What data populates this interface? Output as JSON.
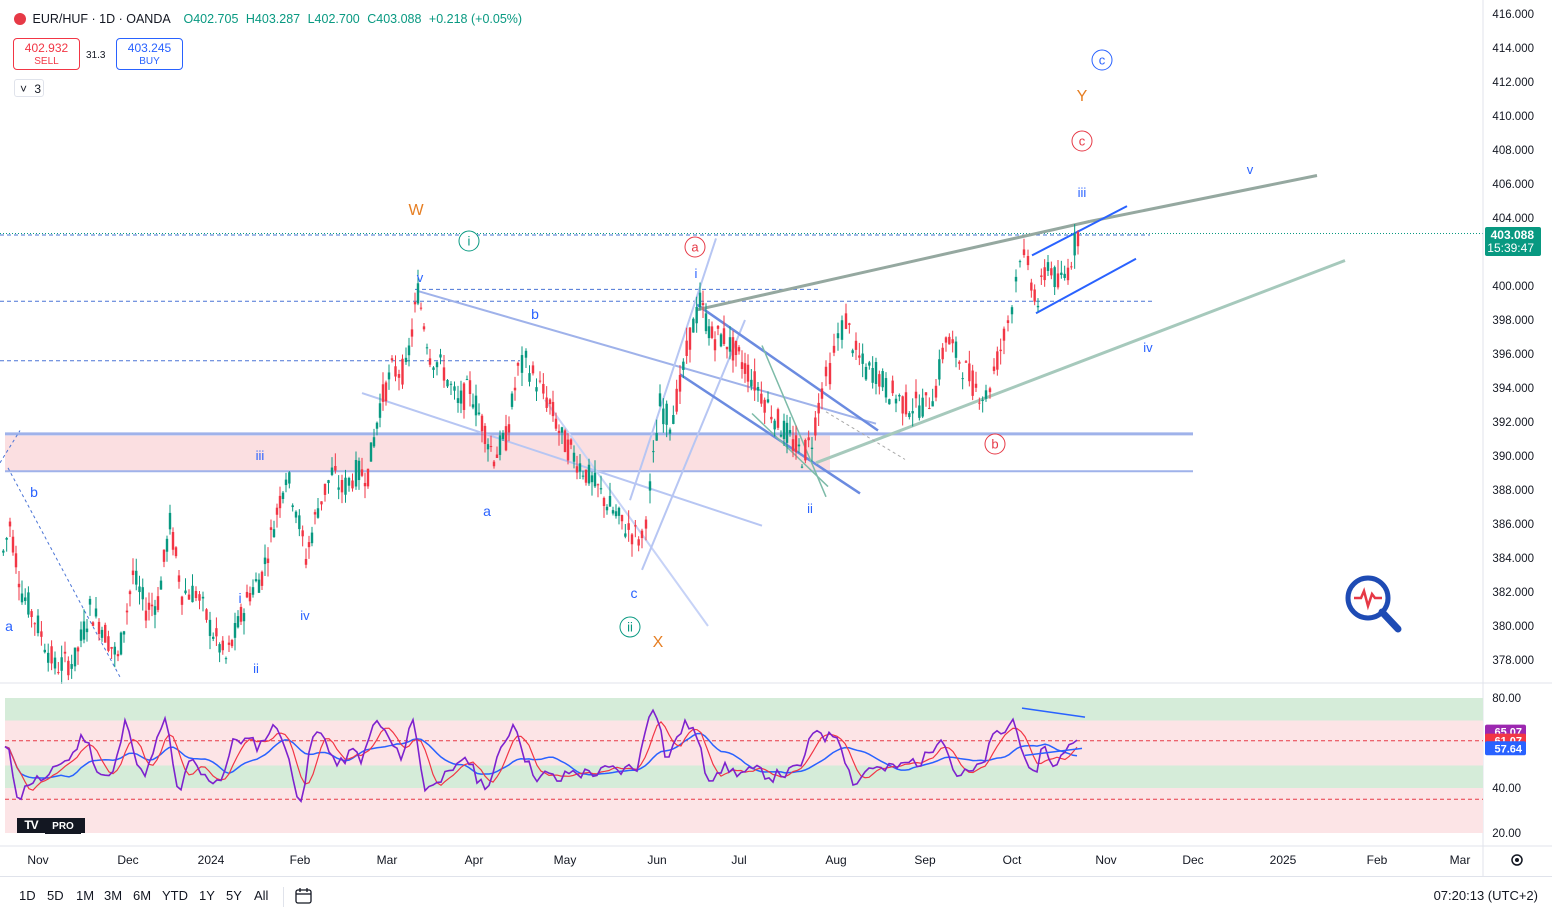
{
  "header": {
    "symbol": "EUR/HUF · 1D · OANDA",
    "open": "O402.705",
    "high": "H403.287",
    "low": "L402.700",
    "close": "C403.088",
    "change": "+0.218 (+0.05%)"
  },
  "trade": {
    "sell_price": "402.932",
    "sell_label": "SELL",
    "spread": "31.3",
    "buy_price": "403.245",
    "buy_label": "BUY",
    "collapse_count": "3"
  },
  "price_axis": [
    "416.000",
    "414.000",
    "412.000",
    "410.000",
    "408.000",
    "406.000",
    "404.000",
    "400.000",
    "398.000",
    "396.000",
    "394.000",
    "392.000",
    "390.000",
    "388.000",
    "386.000",
    "384.000",
    "382.000",
    "380.000",
    "378.000"
  ],
  "price_tag": {
    "price": "403.088",
    "countdown": "15:39:47"
  },
  "rsi_axis": [
    "80.00",
    "40.00",
    "20.00"
  ],
  "rsi_tags": [
    "65.07",
    "61.07",
    "57.64"
  ],
  "time_axis": [
    "Nov",
    "Dec",
    "2024",
    "Feb",
    "Mar",
    "Apr",
    "May",
    "Jun",
    "Jul",
    "Aug",
    "Sep",
    "Oct",
    "Nov",
    "Dec",
    "2025",
    "Feb",
    "Mar"
  ],
  "wave_labels": {
    "W": "W",
    "X": "X",
    "Y": "Y",
    "i_circ": "i",
    "ii_circ": "ii",
    "a_circ": "a",
    "b_circ": "b",
    "c_circ_red": "c",
    "c_circ_blue": "c",
    "v1": "v",
    "b1": "b",
    "a1": "a",
    "c1": "c",
    "iii1": "iii",
    "b0": "b",
    "a0": "a",
    "i1": "i",
    "ii1": "ii",
    "iv1": "iv",
    "i2": "i",
    "ii2": "ii",
    "iii2": "iii",
    "iv2": "iv",
    "v2": "v"
  },
  "ranges": [
    "1D",
    "5D",
    "1M",
    "3M",
    "6M",
    "YTD",
    "1Y",
    "5Y",
    "All"
  ],
  "clock": "07:20:13 (UTC+2)",
  "logo": {
    "tv": "TV",
    "pro": "PRO"
  },
  "colors": {
    "up": "#089981",
    "down": "#f23645",
    "rsi": "#7e22ce",
    "rsi_ma_red": "#f23645",
    "rsi_ma_blue": "#2962ff"
  },
  "chart_data": {
    "type": "candlestick",
    "symbol": "EUR/HUF",
    "interval": "1D",
    "ylim": [
      377,
      417
    ],
    "path": [
      [
        0,
        383.5
      ],
      [
        10,
        386
      ],
      [
        22,
        382
      ],
      [
        38,
        380
      ],
      [
        55,
        377.6
      ],
      [
        75,
        378
      ],
      [
        90,
        381
      ],
      [
        102,
        380
      ],
      [
        118,
        378
      ],
      [
        133,
        383
      ],
      [
        146,
        381
      ],
      [
        158,
        381.5
      ],
      [
        170,
        386
      ],
      [
        182,
        382
      ],
      [
        196,
        382
      ],
      [
        210,
        380
      ],
      [
        226,
        378
      ],
      [
        238,
        380
      ],
      [
        250,
        382
      ],
      [
        262,
        383
      ],
      [
        274,
        386
      ],
      [
        286,
        389
      ],
      [
        296,
        387
      ],
      [
        306,
        384
      ],
      [
        318,
        387
      ],
      [
        332,
        389
      ],
      [
        342,
        388
      ],
      [
        356,
        389
      ],
      [
        368,
        389
      ],
      [
        380,
        393
      ],
      [
        392,
        395
      ],
      [
        406,
        395
      ],
      [
        418,
        399.7
      ],
      [
        430,
        396
      ],
      [
        444,
        395
      ],
      [
        458,
        393
      ],
      [
        470,
        394
      ],
      [
        482,
        392
      ],
      [
        494,
        390
      ],
      [
        506,
        391
      ],
      [
        518,
        395
      ],
      [
        526,
        395.5
      ],
      [
        540,
        394
      ],
      [
        550,
        393
      ],
      [
        562,
        391
      ],
      [
        574,
        390
      ],
      [
        586,
        389
      ],
      [
        598,
        388
      ],
      [
        610,
        387
      ],
      [
        622,
        386
      ],
      [
        632,
        385.5
      ],
      [
        642,
        385
      ],
      [
        650,
        388
      ],
      [
        660,
        393
      ],
      [
        670,
        392
      ],
      [
        680,
        394
      ],
      [
        690,
        397
      ],
      [
        700,
        399
      ],
      [
        712,
        397
      ],
      [
        724,
        397
      ],
      [
        736,
        396
      ],
      [
        748,
        395
      ],
      [
        758,
        394
      ],
      [
        768,
        393
      ],
      [
        778,
        392
      ],
      [
        790,
        391
      ],
      [
        802,
        390
      ],
      [
        812,
        391
      ],
      [
        822,
        394
      ],
      [
        830,
        395
      ],
      [
        838,
        397
      ],
      [
        846,
        398
      ],
      [
        856,
        396
      ],
      [
        866,
        395
      ],
      [
        876,
        395
      ],
      [
        886,
        394
      ],
      [
        896,
        393.5
      ],
      [
        906,
        393
      ],
      [
        916,
        393
      ],
      [
        926,
        393
      ],
      [
        936,
        394
      ],
      [
        946,
        397
      ],
      [
        956,
        396
      ],
      [
        966,
        395
      ],
      [
        976,
        394
      ],
      [
        986,
        393.5
      ],
      [
        994,
        395
      ],
      [
        1004,
        397
      ],
      [
        1012,
        399
      ],
      [
        1020,
        402
      ],
      [
        1028,
        401
      ],
      [
        1038,
        399
      ],
      [
        1048,
        401.5
      ],
      [
        1058,
        400
      ],
      [
        1068,
        401
      ],
      [
        1078,
        403.1
      ]
    ],
    "rsi": {
      "levels": [
        80,
        70,
        60,
        50,
        40,
        30,
        20
      ],
      "last": {
        "rsi": 65.07,
        "ma_red": 61.07,
        "ma_blue": 57.64
      }
    }
  }
}
